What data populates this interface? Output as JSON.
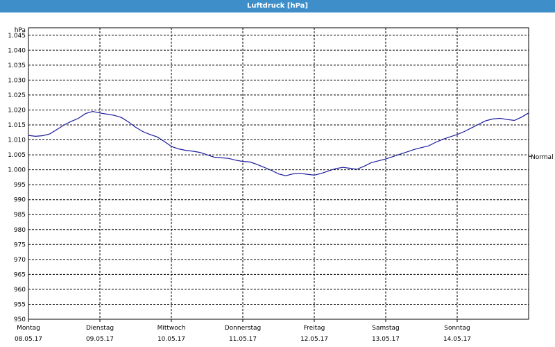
{
  "window": {
    "title": "Luftdruck [hPa]"
  },
  "chart_data": {
    "type": "line",
    "title": "Luftdruck [hPa]",
    "ylabel": "hPa",
    "ylim": [
      950,
      1050
    ],
    "yticks": [
      "1.045",
      "1.040",
      "1.035",
      "1.030",
      "1.025",
      "1.020",
      "1.015",
      "1.010",
      "1.005",
      "1.000",
      "995",
      "990",
      "985",
      "980",
      "975",
      "970",
      "965",
      "960",
      "955",
      "950"
    ],
    "ytick_values": [
      1045,
      1040,
      1035,
      1030,
      1025,
      1020,
      1015,
      1010,
      1005,
      1000,
      995,
      990,
      985,
      980,
      975,
      970,
      965,
      960,
      955,
      950
    ],
    "days": [
      {
        "name": "Montag",
        "date": "08.05.17"
      },
      {
        "name": "Dienstag",
        "date": "09.05.17"
      },
      {
        "name": "Mittwoch",
        "date": "10.05.17"
      },
      {
        "name": "Donnerstag",
        "date": "11.05.17"
      },
      {
        "name": "Freitag",
        "date": "12.05.17"
      },
      {
        "name": "Samstag",
        "date": "13.05.17"
      },
      {
        "name": "Sonntag",
        "date": "14.05.17"
      }
    ],
    "reference_line": {
      "label": "Normal",
      "value": 1004.5
    },
    "grid": true,
    "line_color": "#1a1a9c",
    "series": [
      {
        "x": [
          0,
          0.1,
          0.2,
          0.3,
          0.4,
          0.5,
          0.6,
          0.7,
          0.8,
          0.9,
          1,
          1.1,
          1.2,
          1.3,
          1.4,
          1.5,
          1.6,
          1.7,
          1.8,
          1.9,
          2,
          2.1,
          2.2,
          2.3,
          2.4,
          2.5,
          2.6,
          2.7,
          2.8,
          2.9,
          3,
          3.1,
          3.2,
          3.3,
          3.4,
          3.5,
          3.6,
          3.7,
          3.8,
          3.9,
          4,
          4.1,
          4.2,
          4.3,
          4.4,
          4.5,
          4.6,
          4.7,
          4.8,
          4.9,
          5,
          5.1,
          5.2,
          5.3,
          5.4,
          5.5,
          5.6,
          5.7,
          5.8,
          5.9,
          6,
          6.1,
          6.2,
          6.3,
          6.4,
          6.5,
          6.6,
          6.7,
          6.8,
          6.9,
          7
        ],
        "values": [
          1011.5,
          1011.2,
          1011.4,
          1012.0,
          1013.5,
          1015.0,
          1016.2,
          1017.2,
          1018.8,
          1019.5,
          1019.0,
          1018.6,
          1018.2,
          1017.5,
          1016.0,
          1014.2,
          1012.8,
          1011.8,
          1011.0,
          1009.5,
          1007.8,
          1007.0,
          1006.5,
          1006.2,
          1005.8,
          1005.0,
          1004.2,
          1004.0,
          1003.8,
          1003.2,
          1002.8,
          1002.6,
          1001.8,
          1000.8,
          999.8,
          998.6,
          998.0,
          998.6,
          998.8,
          998.5,
          998.2,
          998.8,
          999.6,
          1000.4,
          1000.8,
          1000.5,
          1000.2,
          1001.2,
          1002.4,
          1003.0,
          1003.6,
          1004.4,
          1005.2,
          1006.0,
          1006.8,
          1007.4,
          1008.0,
          1009.2,
          1010.2,
          1011.0,
          1011.8,
          1012.8,
          1014.0,
          1015.2,
          1016.4,
          1017.0,
          1017.2,
          1016.8,
          1016.5,
          1017.6,
          1019.0
        ]
      }
    ]
  }
}
